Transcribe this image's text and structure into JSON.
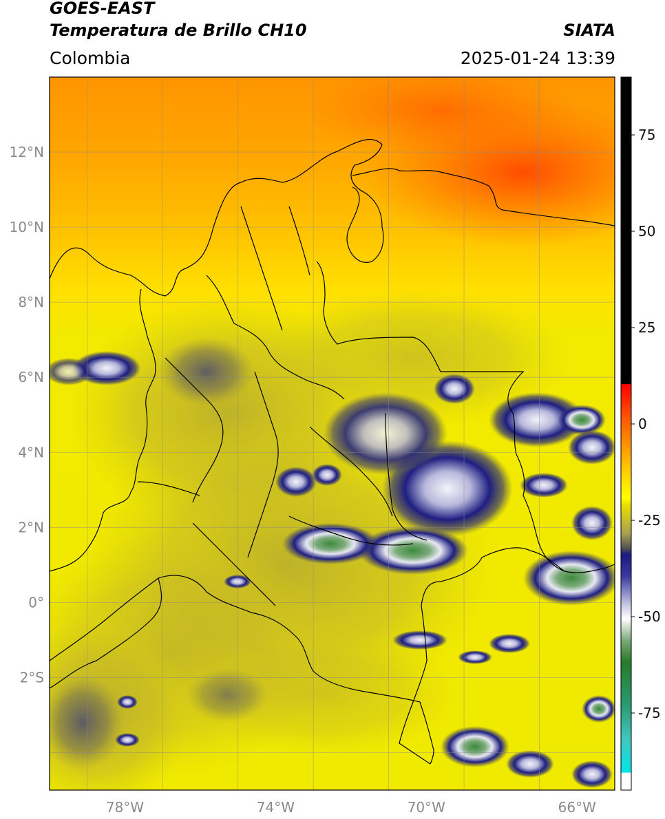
{
  "header": {
    "title_line1": "GOES-EAST",
    "title_line2": "Temperatura de Brillo CH10",
    "source": "SIATA",
    "region": "Colombia",
    "timestamp": "2025-01-24 13:39"
  },
  "map": {
    "lon_range": [
      -80,
      -65
    ],
    "lat_range": [
      -5,
      14
    ],
    "lat_ticks": [
      {
        "value": 12,
        "label": "12°N"
      },
      {
        "value": 10,
        "label": "10°N"
      },
      {
        "value": 8,
        "label": "8°N"
      },
      {
        "value": 6,
        "label": "6°N"
      },
      {
        "value": 4,
        "label": "4°N"
      },
      {
        "value": 2,
        "label": "2°N"
      },
      {
        "value": 0,
        "label": "0°"
      },
      {
        "value": -2,
        "label": "2°S"
      }
    ],
    "lon_ticks": [
      {
        "value": -78,
        "label": "78°W"
      },
      {
        "value": -74,
        "label": "74°W"
      },
      {
        "value": -70,
        "label": "70°W"
      },
      {
        "value": -66,
        "label": "66°W"
      }
    ],
    "colors": {
      "warm_ocean": "#ff8c00",
      "hot_core": "#ff4a00",
      "mid_layer": "#ffd900",
      "humid_layer": "#c8b825",
      "cold_cloud": "#1a1a7a",
      "very_cold_cloud": "#e8e8f2",
      "coldest": "#3a8a3a"
    }
  },
  "colorbar": {
    "range": [
      -95,
      90
    ],
    "ticks": [
      {
        "value": 75,
        "label": "75"
      },
      {
        "value": 50,
        "label": "50"
      },
      {
        "value": 25,
        "label": "25"
      },
      {
        "value": 0,
        "label": "0"
      },
      {
        "value": -25,
        "label": "-25"
      },
      {
        "value": -50,
        "label": "-50"
      },
      {
        "value": -75,
        "label": "-75"
      }
    ]
  }
}
